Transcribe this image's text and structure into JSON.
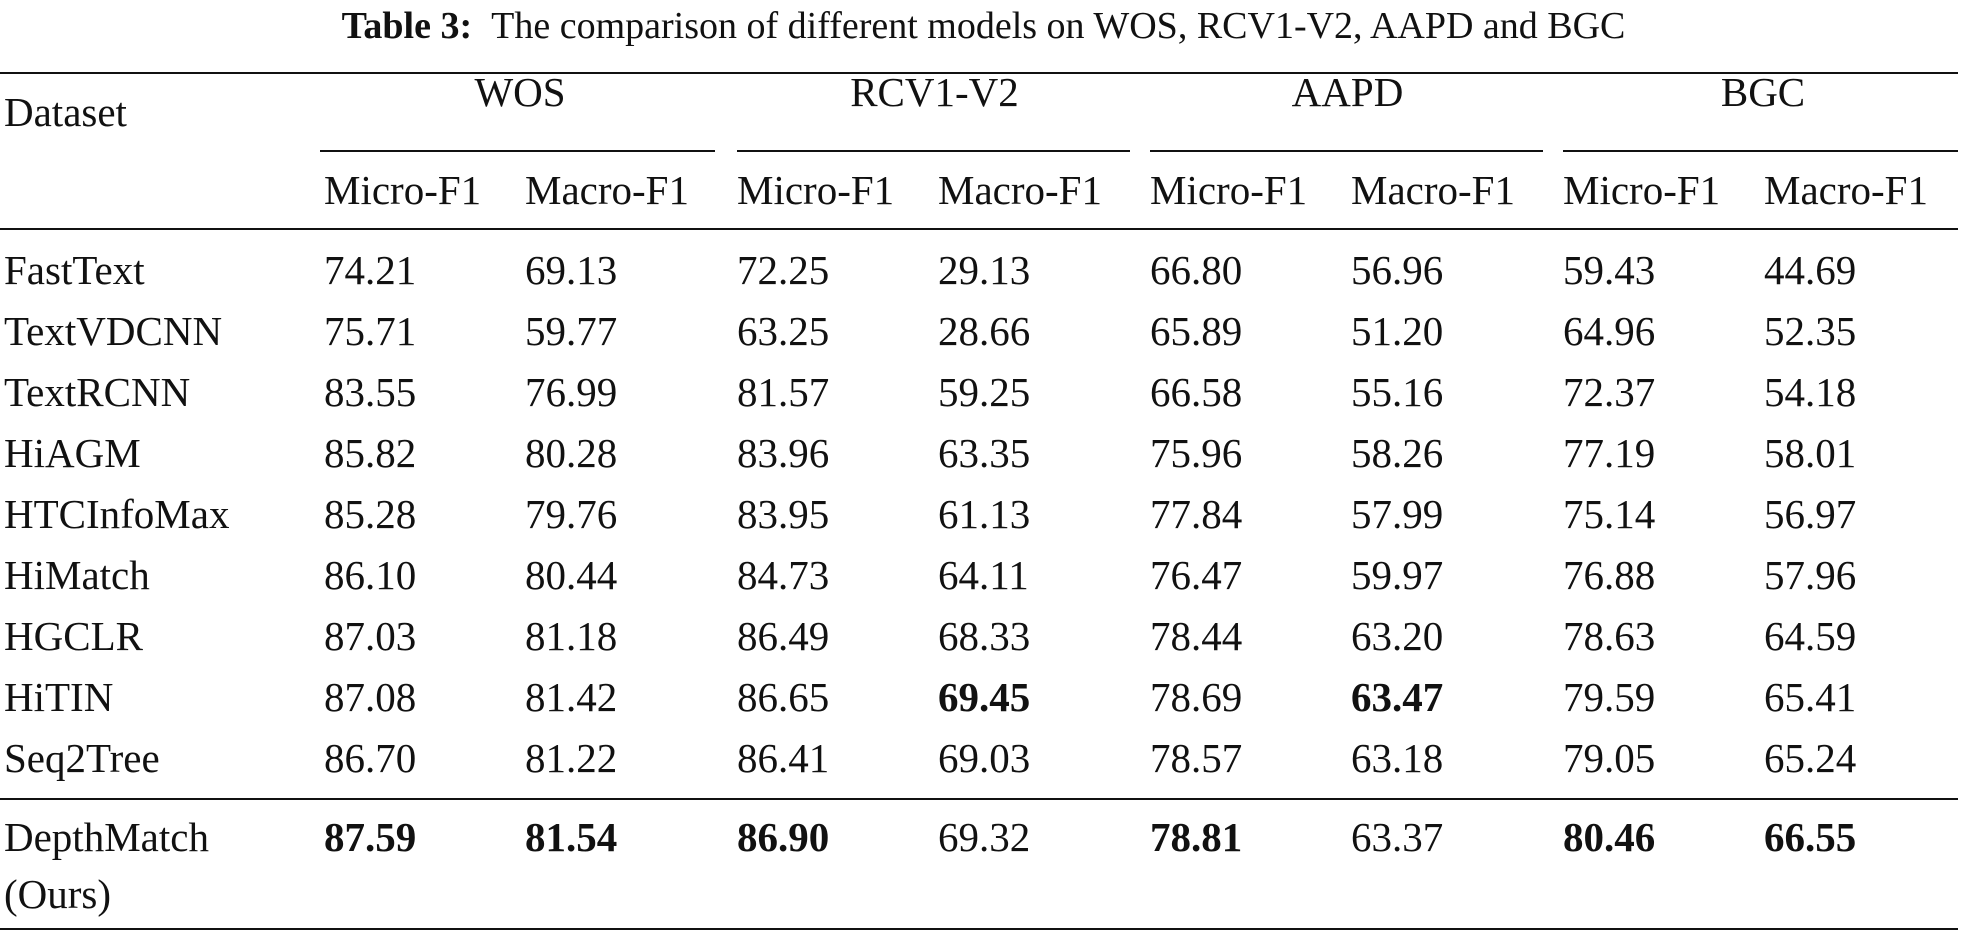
{
  "caption": {
    "label": "Table 3:",
    "text": "The comparison of different models on WOS, RCV1-V2, AAPD and BGC"
  },
  "header": {
    "dataset_label": "Dataset",
    "groups": [
      "WOS",
      "RCV1-V2",
      "AAPD",
      "BGC"
    ],
    "subcolumns": [
      "Micro-F1",
      "Macro-F1",
      "Micro-F1",
      "Macro-F1",
      "Micro-F1",
      "Macro-F1",
      "Micro-F1",
      "Macro-F1"
    ]
  },
  "rows": [
    {
      "model": "FastText",
      "values": [
        "74.21",
        "69.13",
        "72.25",
        "29.13",
        "66.80",
        "56.96",
        "59.43",
        "44.69"
      ],
      "bold": []
    },
    {
      "model": "TextVDCNN",
      "values": [
        "75.71",
        "59.77",
        "63.25",
        "28.66",
        "65.89",
        "51.20",
        "64.96",
        "52.35"
      ],
      "bold": []
    },
    {
      "model": "TextRCNN",
      "values": [
        "83.55",
        "76.99",
        "81.57",
        "59.25",
        "66.58",
        "55.16",
        "72.37",
        "54.18"
      ],
      "bold": []
    },
    {
      "model": "HiAGM",
      "values": [
        "85.82",
        "80.28",
        "83.96",
        "63.35",
        "75.96",
        "58.26",
        "77.19",
        "58.01"
      ],
      "bold": []
    },
    {
      "model": "HTCInfoMax",
      "values": [
        "85.28",
        "79.76",
        "83.95",
        "61.13",
        "77.84",
        "57.99",
        "75.14",
        "56.97"
      ],
      "bold": []
    },
    {
      "model": "HiMatch",
      "values": [
        "86.10",
        "80.44",
        "84.73",
        "64.11",
        "76.47",
        "59.97",
        "76.88",
        "57.96"
      ],
      "bold": []
    },
    {
      "model": "HGCLR",
      "values": [
        "87.03",
        "81.18",
        "86.49",
        "68.33",
        "78.44",
        "63.20",
        "78.63",
        "64.59"
      ],
      "bold": []
    },
    {
      "model": "HiTIN",
      "values": [
        "87.08",
        "81.42",
        "86.65",
        "69.45",
        "78.69",
        "63.47",
        "79.59",
        "65.41"
      ],
      "bold": [
        3,
        5
      ]
    },
    {
      "model": "Seq2Tree",
      "values": [
        "86.70",
        "81.22",
        "86.41",
        "69.03",
        "78.57",
        "63.18",
        "79.05",
        "65.24"
      ],
      "bold": []
    }
  ],
  "ours": {
    "model_line1": "DepthMatch",
    "model_line2": "(Ours)",
    "values": [
      "87.59",
      "81.54",
      "86.90",
      "69.32",
      "78.81",
      "63.37",
      "80.46",
      "66.55"
    ],
    "bold": [
      0,
      1,
      2,
      4,
      6,
      7
    ]
  }
}
